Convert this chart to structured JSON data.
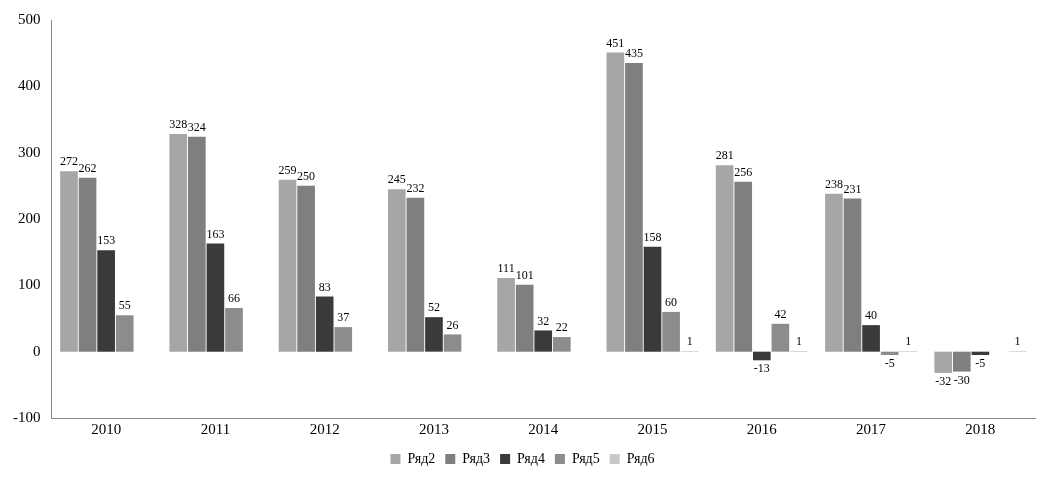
{
  "chart_data": {
    "type": "bar",
    "categories": [
      "2010",
      "2011",
      "2012",
      "2013",
      "2014",
      "2015",
      "2016",
      "2017",
      "2018"
    ],
    "series": [
      {
        "name": "Ряд2",
        "color": "#a6a6a6",
        "values": [
          272,
          328,
          259,
          245,
          111,
          451,
          281,
          238,
          -32
        ],
        "value_labels": [
          "272",
          "328",
          "259",
          "245",
          "111",
          "451",
          "281",
          "238",
          "-32"
        ]
      },
      {
        "name": "Ряд3",
        "color": "#7f7f7f",
        "values": [
          262,
          324,
          250,
          232,
          101,
          435,
          256,
          231,
          -30
        ],
        "value_labels": [
          "262",
          "324",
          "250",
          "232",
          "101",
          "435",
          "256",
          "231",
          "-30"
        ]
      },
      {
        "name": "Ряд4",
        "color": "#3a3a3a",
        "values": [
          153,
          163,
          83,
          52,
          32,
          158,
          -13,
          40,
          -5
        ],
        "value_labels": [
          "153",
          "163",
          "83",
          "52",
          "32",
          "158",
          "-13",
          "40",
          "-5"
        ]
      },
      {
        "name": "Ряд5",
        "color": "#8c8c8c",
        "values": [
          55,
          66,
          37,
          26,
          22,
          60,
          42,
          -5,
          null
        ],
        "value_labels": [
          "55",
          "66",
          "37",
          "26",
          "22",
          "60",
          "42",
          "-5",
          null
        ]
      },
      {
        "name": "Ряд6",
        "color": "#c8c8c8",
        "values": [
          0,
          0,
          0,
          0,
          0,
          1,
          1,
          1,
          1
        ],
        "value_labels": [
          null,
          null,
          null,
          null,
          null,
          "1",
          "1",
          "1",
          "1"
        ]
      }
    ],
    "ylim": [
      -100,
      500
    ],
    "yticks": [
      -100,
      0,
      100,
      200,
      300,
      400,
      500
    ],
    "grid": false,
    "legend": "bottom"
  }
}
